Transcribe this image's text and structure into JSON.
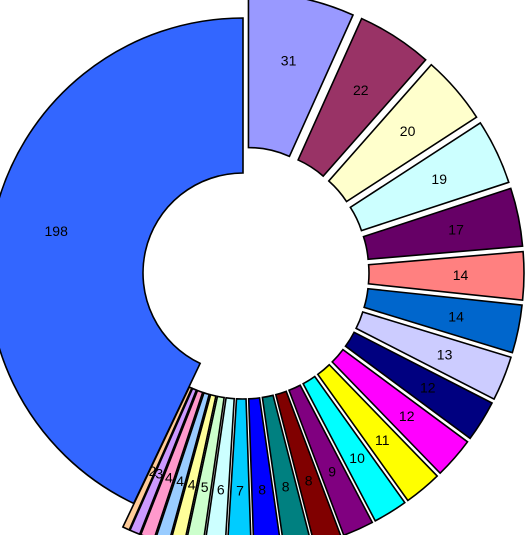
{
  "chart_data": {
    "type": "pie",
    "donut": true,
    "exploded": true,
    "title": "",
    "start_angle_deg": 0,
    "direction": "clockwise",
    "slices": [
      {
        "value": 31,
        "label": "31",
        "color": "#9999ff"
      },
      {
        "value": 22,
        "label": "22",
        "color": "#993366"
      },
      {
        "value": 20,
        "label": "20",
        "color": "#ffffcc"
      },
      {
        "value": 19,
        "label": "19",
        "color": "#ccffff"
      },
      {
        "value": 17,
        "label": "17",
        "color": "#660066"
      },
      {
        "value": 14,
        "label": "14",
        "color": "#ff8080"
      },
      {
        "value": 14,
        "label": "14",
        "color": "#0066cc"
      },
      {
        "value": 13,
        "label": "13",
        "color": "#ccccff"
      },
      {
        "value": 12,
        "label": "12",
        "color": "#000080"
      },
      {
        "value": 12,
        "label": "12",
        "color": "#ff00ff"
      },
      {
        "value": 11,
        "label": "11",
        "color": "#ffff00"
      },
      {
        "value": 10,
        "label": "10",
        "color": "#00ffff"
      },
      {
        "value": 9,
        "label": "9",
        "color": "#800080"
      },
      {
        "value": 8,
        "label": "8",
        "color": "#800000"
      },
      {
        "value": 8,
        "label": "8",
        "color": "#008080"
      },
      {
        "value": 8,
        "label": "8",
        "color": "#0000ff"
      },
      {
        "value": 7,
        "label": "7",
        "color": "#00ccff"
      },
      {
        "value": 6,
        "label": "6",
        "color": "#ccffff"
      },
      {
        "value": 5,
        "label": "5",
        "color": "#ccffcc"
      },
      {
        "value": 4,
        "label": "4",
        "color": "#ffff99"
      },
      {
        "value": 4,
        "label": "4",
        "color": "#99ccff"
      },
      {
        "value": 4,
        "label": "4",
        "color": "#ff99cc"
      },
      {
        "value": 3,
        "label": "3",
        "color": "#cc99ff"
      },
      {
        "value": 2,
        "label": "2",
        "color": "#ffcc99"
      },
      {
        "value": 198,
        "label": "198",
        "color": "#3366ff"
      }
    ]
  }
}
